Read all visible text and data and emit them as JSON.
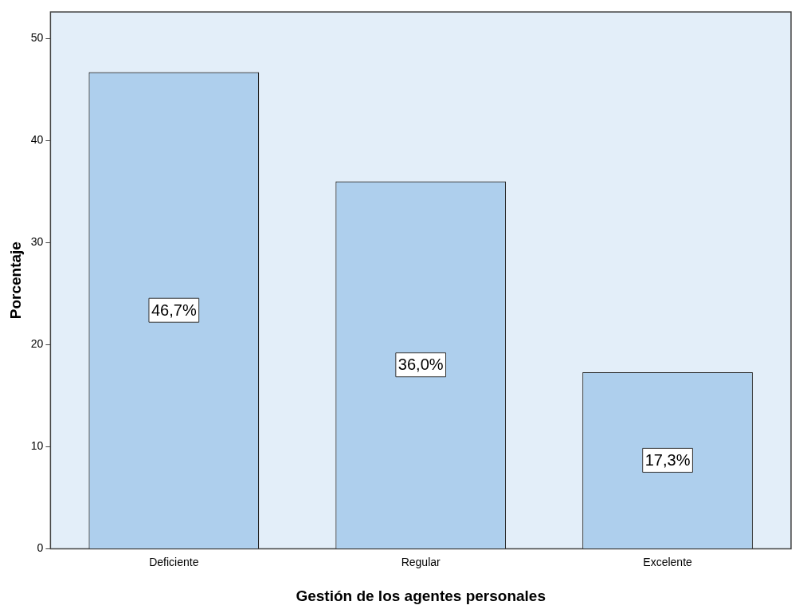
{
  "chart_data": {
    "type": "bar",
    "xlabel": "Gestión de los agentes personales",
    "ylabel": "Porcentaje",
    "categories": [
      "Deficiente",
      "Regular",
      "Excelente"
    ],
    "values": [
      46.7,
      36.0,
      17.3
    ],
    "value_labels": [
      "46,7%",
      "36,0%",
      "17,3%"
    ],
    "color": "#aecfed",
    "ylim": [
      0,
      52.6
    ],
    "yticks": [
      0,
      10,
      20,
      30,
      40,
      50
    ],
    "grid": false,
    "legend": false
  }
}
